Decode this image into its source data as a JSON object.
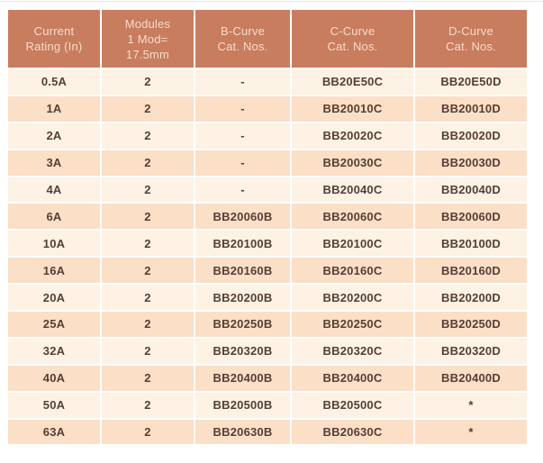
{
  "colors": {
    "header_bg": "#c87d5f",
    "header_text": "#f7dbc9",
    "row_light": "#fdf2e3",
    "row_dark": "#fbdfc6",
    "cell_text": "#553e35",
    "page_bg": "#ffffff"
  },
  "table": {
    "columns": [
      {
        "key": "current-rating",
        "label": "Current\nRating (In)"
      },
      {
        "key": "modules",
        "label": "Modules\n1 Mod=\n17.5mm"
      },
      {
        "key": "b-curve",
        "label": "B-Curve\nCat. Nos."
      },
      {
        "key": "c-curve",
        "label": "C-Curve\nCat. Nos."
      },
      {
        "key": "d-curve",
        "label": "D-Curve\nCat. Nos."
      }
    ],
    "rows": [
      [
        "0.5A",
        "2",
        "-",
        "BB20E50C",
        "BB20E50D"
      ],
      [
        "1A",
        "2",
        "-",
        "BB20010C",
        "BB20010D"
      ],
      [
        "2A",
        "2",
        "-",
        "BB20020C",
        "BB20020D"
      ],
      [
        "3A",
        "2",
        "-",
        "BB20030C",
        "BB20030D"
      ],
      [
        "4A",
        "2",
        "-",
        "BB20040C",
        "BB20040D"
      ],
      [
        "6A",
        "2",
        "BB20060B",
        "BB20060C",
        "BB20060D"
      ],
      [
        "10A",
        "2",
        "BB20100B",
        "BB20100C",
        "BB20100D"
      ],
      [
        "16A",
        "2",
        "BB20160B",
        "BB20160C",
        "BB20160D"
      ],
      [
        "20A",
        "2",
        "BB20200B",
        "BB20200C",
        "BB20200D"
      ],
      [
        "25A",
        "2",
        "BB20250B",
        "BB20250C",
        "BB20250D"
      ],
      [
        "32A",
        "2",
        "BB20320B",
        "BB20320C",
        "BB20320D"
      ],
      [
        "40A",
        "2",
        "BB20400B",
        "BB20400C",
        "BB20400D"
      ],
      [
        "50A",
        "2",
        "BB20500B",
        "BB20500C",
        "*"
      ],
      [
        "63A",
        "2",
        "BB20630B",
        "BB20630C",
        "*"
      ]
    ]
  }
}
